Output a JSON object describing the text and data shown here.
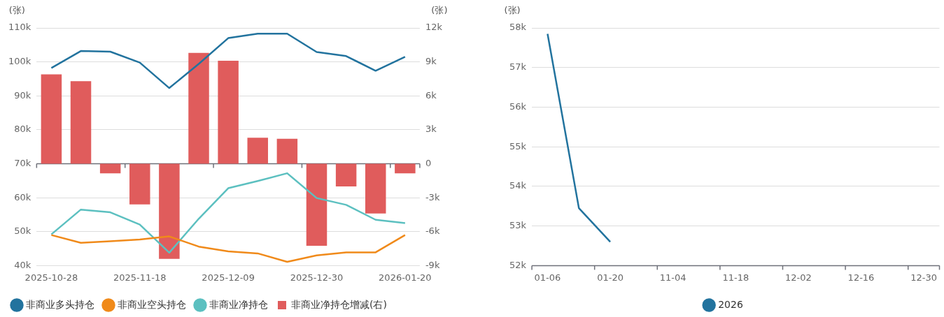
{
  "chart_data": [
    {
      "type": "line",
      "ylabel": "(张)",
      "y2label": "(张)",
      "categories": [
        "2025-10-28",
        null,
        null,
        "2025-11-18",
        null,
        null,
        "2025-12-09",
        null,
        null,
        "2025-12-30",
        null,
        null,
        "2026-01-20"
      ],
      "series": [
        {
          "name": "非商业多头持仓",
          "color": "#22739e",
          "values": [
            98200,
            103200,
            103000,
            99800,
            92300,
            99400,
            107000,
            108300,
            108300,
            102900,
            101700,
            97400,
            101500
          ]
        },
        {
          "name": "非商业空头持仓",
          "color": "#f08a1a",
          "values": [
            49000,
            46700,
            47200,
            47700,
            48600,
            45600,
            44200,
            43600,
            41100,
            43000,
            43900,
            43900,
            49000
          ]
        },
        {
          "name": "非商业净持仓",
          "color": "#5cc0c0",
          "values": [
            49200,
            56500,
            55700,
            52100,
            43800,
            53800,
            62800,
            64900,
            67200,
            59900,
            57900,
            53500,
            52500
          ]
        },
        {
          "name": "非商业净持仓增减(右)",
          "type": "bar",
          "axis": "y2",
          "color": "#e05c5c",
          "values": [
            7900,
            7300,
            -850,
            -3600,
            -8400,
            9800,
            9100,
            2300,
            2200,
            -7250,
            -2000,
            -4400,
            -850
          ]
        }
      ],
      "ylim": [
        40000,
        110000
      ],
      "yticks": [
        {
          "value": 40000,
          "label": "40k"
        },
        {
          "value": 50000,
          "label": "50k"
        },
        {
          "value": 60000,
          "label": "60k"
        },
        {
          "value": 70000,
          "label": "70k"
        },
        {
          "value": 80000,
          "label": "80k"
        },
        {
          "value": 90000,
          "label": "90k"
        },
        {
          "value": 100000,
          "label": "100k"
        },
        {
          "value": 110000,
          "label": "110k"
        }
      ],
      "y2lim": [
        -9000,
        12000
      ],
      "y2ticks": [
        {
          "value": -9000,
          "label": "-9k"
        },
        {
          "value": -6000,
          "label": "-6k"
        },
        {
          "value": -3000,
          "label": "-3k"
        },
        0,
        {
          "value": 3000,
          "label": "3k"
        },
        {
          "value": 6000,
          "label": "6k"
        },
        {
          "value": 9000,
          "label": "9k"
        },
        {
          "value": 12000,
          "label": "12k"
        }
      ],
      "grid": "y",
      "legend": "bottom left",
      "marker": "none"
    },
    {
      "type": "line",
      "ylabel": "(张)",
      "categories": [
        "01-06",
        null,
        "01-20",
        null,
        "11-04",
        null,
        "11-18",
        null,
        "12-02",
        null,
        "12-16",
        null,
        "12-30"
      ],
      "series": [
        {
          "name": "2026",
          "color": "#22739e",
          "values": [
            57850,
            53450,
            52600,
            null,
            null,
            null,
            null,
            null,
            null,
            null,
            null,
            null,
            null
          ]
        }
      ],
      "ylim": [
        52000,
        58000
      ],
      "yticks": [
        {
          "value": 52000,
          "label": "52k"
        },
        {
          "value": 53000,
          "label": "53k"
        },
        {
          "value": 54000,
          "label": "54k"
        },
        {
          "value": 55000,
          "label": "55k"
        },
        {
          "value": 56000,
          "label": "56k"
        },
        {
          "value": 57000,
          "label": "57k"
        },
        {
          "value": 58000,
          "label": "58k"
        }
      ],
      "grid": "y",
      "legend": "bottom",
      "marker": "none"
    }
  ]
}
